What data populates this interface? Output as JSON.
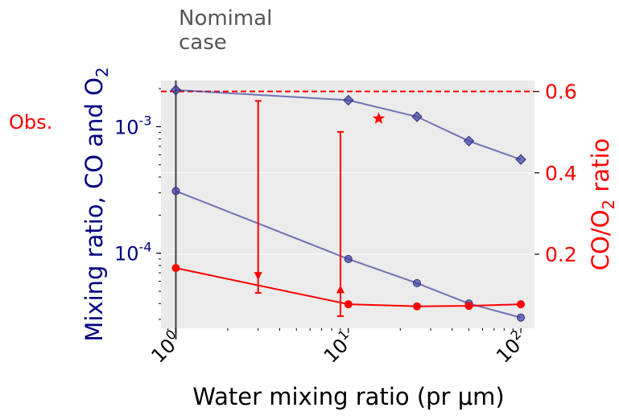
{
  "chart_data": {
    "type": "line",
    "xlabel": "Water mixing ratio (pr μm)",
    "ylabel_left": "Mixing ratio, CO and O",
    "ylabel_left_sub": "2",
    "ylabel_right": "CO/O",
    "ylabel_right_sub": "2",
    "ylabel_right_tail": " ratio",
    "x_scale": "log",
    "xlim": [
      0.82,
      120
    ],
    "x_ticks": [
      {
        "value": 1,
        "base": "10",
        "exp": "0"
      },
      {
        "value": 10,
        "base": "10",
        "exp": "1"
      },
      {
        "value": 100,
        "base": "10",
        "exp": "2"
      }
    ],
    "y_left_scale": "log",
    "y_left_lim": [
      2.55e-05,
      0.00232
    ],
    "y_left_ticks": [
      {
        "value": 0.0001,
        "base": "10",
        "exp": "-4"
      },
      {
        "value": 0.001,
        "base": "10",
        "exp": "-3"
      }
    ],
    "y_right_scale": "linear",
    "y_right_lim": [
      0.018,
      0.627
    ],
    "y_right_ticks": [
      "0.2",
      "0.4",
      "0.6"
    ],
    "background": "#ebebeb",
    "grid": "horizontal",
    "series": [
      {
        "axis": "left",
        "color": "#3c3f9d",
        "marker": "diamond",
        "x": [
          1,
          10,
          25,
          50,
          100
        ],
        "y": [
          0.00195,
          0.00162,
          0.0012,
          0.00077,
          0.00055
        ]
      },
      {
        "axis": "left",
        "color": "#3c3f9d",
        "marker": "circle",
        "x": [
          1,
          10,
          25,
          50,
          100
        ],
        "y": [
          0.00031,
          9e-05,
          5.8e-05,
          4e-05,
          3.1e-05
        ]
      },
      {
        "axis": "right",
        "color": "#ff0000",
        "marker": "filled-circle",
        "x": [
          1,
          10,
          25,
          50,
          100
        ],
        "y": [
          0.166,
          0.077,
          0.072,
          0.073,
          0.077
        ]
      }
    ],
    "vertical_line": {
      "x": 1,
      "color": "#404040"
    },
    "horizontal_line": {
      "axis": "right",
      "y": 0.6,
      "color": "#ff0000",
      "style": "dashed",
      "label": "Obs."
    },
    "error_bars": [
      {
        "x": 3,
        "y_top": 0.0016,
        "y_bottom": 4.85e-05,
        "marker": "down-triangle",
        "marker_y": 6.6e-05
      },
      {
        "x": 9,
        "y_top": 0.00091,
        "y_bottom": 3.18e-05,
        "marker": "up-triangle",
        "marker_y": 5.2e-05
      }
    ],
    "star_marker": {
      "axis": "left",
      "x": 15,
      "y": 0.00116,
      "color": "#ff0000"
    },
    "annotation": [
      "Nomimal",
      "case"
    ]
  },
  "colors": {
    "navy": "#000080",
    "red": "#ff0000",
    "annotation": "#555555"
  }
}
